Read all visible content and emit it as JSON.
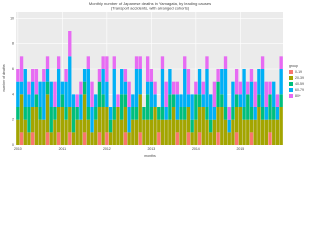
{
  "chart_data": {
    "type": "stacked-bar",
    "title": "Monthly number of Japanese deaths in Yamagata, by leading causes",
    "subtitle": "(Transport accidents, with arranged cohorts)",
    "x_label": "months",
    "y_label": "number of deaths",
    "legend_title": "group",
    "categories": [
      "2010",
      null,
      null,
      null,
      null,
      null,
      null,
      null,
      null,
      null,
      null,
      null,
      "2011",
      null,
      null,
      null,
      null,
      null,
      null,
      null,
      null,
      null,
      null,
      null,
      "2012",
      null,
      null,
      null,
      null,
      null,
      null,
      null,
      null,
      null,
      null,
      null,
      "2013",
      null,
      null,
      null,
      null,
      null,
      null,
      null,
      null,
      null,
      null,
      null,
      "2014",
      null,
      null,
      null,
      null,
      null,
      null,
      null,
      null,
      null,
      null,
      null,
      "2015",
      null,
      null,
      null,
      null,
      null,
      null,
      null,
      null,
      null,
      null,
      null
    ],
    "series": [
      {
        "name": "0-19",
        "color": "#F8766D",
        "values": [
          0,
          1,
          0,
          0,
          1,
          0,
          0,
          0,
          1,
          0,
          0,
          1,
          0,
          0,
          1,
          0,
          0,
          0,
          1,
          0,
          0,
          0,
          1,
          0,
          1,
          0,
          0,
          0,
          0,
          1,
          0,
          0,
          0,
          1,
          0,
          0,
          0,
          0,
          1,
          0,
          0,
          0,
          0,
          1,
          0,
          0,
          1,
          0,
          0,
          1,
          0,
          0,
          0,
          0,
          1,
          0,
          0,
          0,
          0,
          1,
          0,
          0,
          0,
          1,
          0,
          0,
          0,
          0,
          1,
          0,
          0,
          0
        ]
      },
      {
        "name": "20-39",
        "color": "#A3A500",
        "values": [
          2,
          3,
          2,
          1,
          2,
          3,
          2,
          2,
          3,
          1,
          2,
          2,
          3,
          2,
          2,
          1,
          2,
          2,
          3,
          2,
          1,
          2,
          2,
          3,
          2,
          1,
          2,
          3,
          2,
          2,
          1,
          2,
          2,
          3,
          2,
          2,
          2,
          3,
          1,
          2,
          2,
          2,
          3,
          1,
          2,
          2,
          2,
          1,
          2,
          2,
          3,
          2,
          1,
          2,
          2,
          3,
          2,
          1,
          2,
          2,
          3,
          2,
          2,
          1,
          2,
          3,
          2,
          2,
          1,
          2,
          2,
          3
        ]
      },
      {
        "name": "40-59",
        "color": "#00BF7D",
        "values": [
          1,
          0,
          1,
          2,
          0,
          1,
          1,
          0,
          1,
          2,
          1,
          0,
          1,
          1,
          0,
          2,
          1,
          0,
          1,
          1,
          0,
          1,
          2,
          1,
          0,
          1,
          1,
          0,
          2,
          1,
          0,
          1,
          1,
          0,
          1,
          2,
          1,
          0,
          1,
          1,
          0,
          2,
          1,
          0,
          1,
          1,
          0,
          1,
          2,
          1,
          0,
          1,
          1,
          0,
          2,
          1,
          1,
          0,
          1,
          1,
          0,
          1,
          2,
          1,
          0,
          1,
          1,
          0,
          2,
          1,
          0,
          1
        ]
      },
      {
        "name": "60-79",
        "color": "#00B0F6",
        "values": [
          2,
          1,
          3,
          1,
          2,
          0,
          2,
          3,
          1,
          2,
          0,
          3,
          1,
          2,
          4,
          1,
          0,
          2,
          1,
          3,
          2,
          1,
          0,
          2,
          2,
          1,
          3,
          0,
          2,
          1,
          2,
          1,
          3,
          2,
          0,
          1,
          2,
          1,
          0,
          3,
          1,
          2,
          0,
          2,
          1,
          3,
          1,
          2,
          0,
          2,
          1,
          3,
          2,
          1,
          0,
          2,
          3,
          1,
          2,
          0,
          1,
          3,
          0,
          2,
          1,
          2,
          3,
          1,
          0,
          2,
          1,
          2
        ]
      },
      {
        "name": "80+",
        "color": "#E76BF3",
        "values": [
          1,
          2,
          0,
          1,
          1,
          2,
          0,
          1,
          1,
          0,
          2,
          1,
          0,
          1,
          2,
          0,
          1,
          1,
          0,
          1,
          2,
          0,
          1,
          1,
          2,
          0,
          1,
          1,
          0,
          1,
          2,
          0,
          1,
          1,
          0,
          2,
          1,
          1,
          0,
          1,
          2,
          0,
          1,
          1,
          0,
          1,
          2,
          0,
          1,
          0,
          1,
          1,
          0,
          2,
          1,
          0,
          1,
          1,
          0,
          2,
          1,
          0,
          1,
          1,
          2,
          0,
          1,
          2,
          1,
          0,
          1,
          1
        ]
      }
    ],
    "ylim": [
      0,
      10.5
    ],
    "yticks": [
      0,
      2,
      4,
      6,
      8,
      10
    ],
    "grid": true
  }
}
